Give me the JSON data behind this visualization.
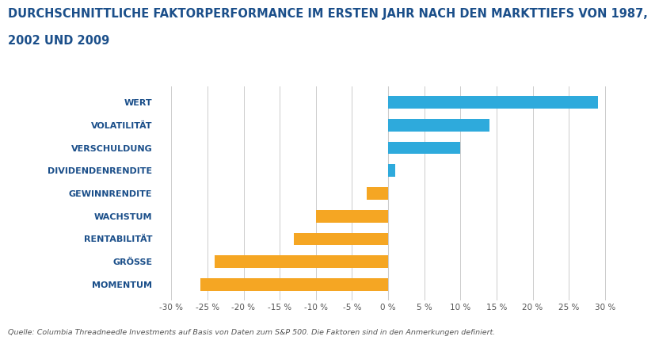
{
  "title_line1": "DURCHSCHNITTLICHE FAKTORPERFORMANCE IM ERSTEN JAHR NACH DEN MARKTTIEFS VON 1987,",
  "title_line2": "2002 UND 2009",
  "categories": [
    "MOMENTUM",
    "GRÖSSE",
    "RENTABILITÄT",
    "WACHSTUM",
    "GEWINNRENDITE",
    "DIVIDENDENRENDITE",
    "VERSCHULDUNG",
    "VOLATILITÄT",
    "WERT"
  ],
  "values": [
    -26,
    -24,
    -13,
    -10,
    -3,
    1,
    10,
    14,
    29
  ],
  "bar_color_positive": "#2eaadc",
  "bar_color_negative": "#f5a623",
  "xlim": [
    -32,
    32
  ],
  "xticks": [
    -30,
    -25,
    -20,
    -15,
    -10,
    -5,
    0,
    5,
    10,
    15,
    20,
    25,
    30
  ],
  "xtick_labels": [
    "-30 %",
    "-25 %",
    "-20 %",
    "-15 %",
    "-10 %",
    "-5 %",
    "0 %",
    "5 %",
    "10 %",
    "15 %",
    "20 %",
    "25 %",
    "30 %"
  ],
  "footnote": "Quelle: Columbia Threadneedle Investments auf Basis von Daten zum S&P 500. Die Faktoren sind in den Anmerkungen definiert.",
  "title_color": "#1b4f8a",
  "label_color": "#1b4f8a",
  "tick_color": "#555555",
  "grid_color": "#cccccc",
  "background_color": "#ffffff",
  "title_fontsize": 10.5,
  "label_fontsize": 8,
  "tick_fontsize": 7.5,
  "footnote_fontsize": 6.8,
  "bar_height": 0.55
}
